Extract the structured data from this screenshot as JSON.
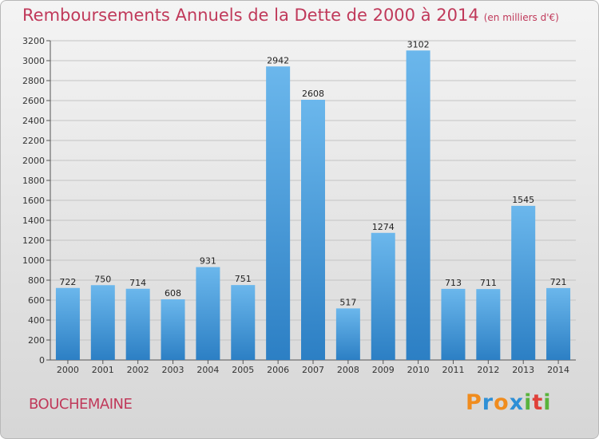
{
  "title": "Remboursements Annuels de la Dette de 2000 à 2014",
  "unit_label": "(en milliers d'€)",
  "commune": "BOUCHEMAINE",
  "logo": {
    "letters": [
      {
        "ch": "P",
        "color": "#f08c1e"
      },
      {
        "ch": "r",
        "color": "#2e8fd6"
      },
      {
        "ch": "o",
        "color": "#f08c1e"
      },
      {
        "ch": "x",
        "color": "#2e8fd6"
      },
      {
        "ch": "i",
        "color": "#59b33c"
      },
      {
        "ch": "t",
        "color": "#e0413a"
      },
      {
        "ch": "i",
        "color": "#59b33c"
      }
    ]
  },
  "colors": {
    "bar_top": "#6bb7ec",
    "bar_bottom": "#2c7fc4",
    "accent": "#c0395a"
  },
  "chart_data": {
    "type": "bar",
    "categories": [
      "2000",
      "2001",
      "2002",
      "2003",
      "2004",
      "2005",
      "2006",
      "2007",
      "2008",
      "2009",
      "2010",
      "2011",
      "2012",
      "2013",
      "2014"
    ],
    "values": [
      722,
      750,
      714,
      608,
      931,
      751,
      2942,
      2608,
      517,
      1274,
      3102,
      713,
      711,
      1545,
      721
    ],
    "ylim": [
      0,
      3200
    ],
    "yticks": [
      0,
      200,
      400,
      600,
      800,
      1000,
      1200,
      1400,
      1600,
      1800,
      2000,
      2200,
      2400,
      2600,
      2800,
      3000,
      3200
    ],
    "grid": true,
    "title": "Remboursements Annuels de la Dette de 2000 à 2014",
    "xlabel": "",
    "ylabel": ""
  }
}
